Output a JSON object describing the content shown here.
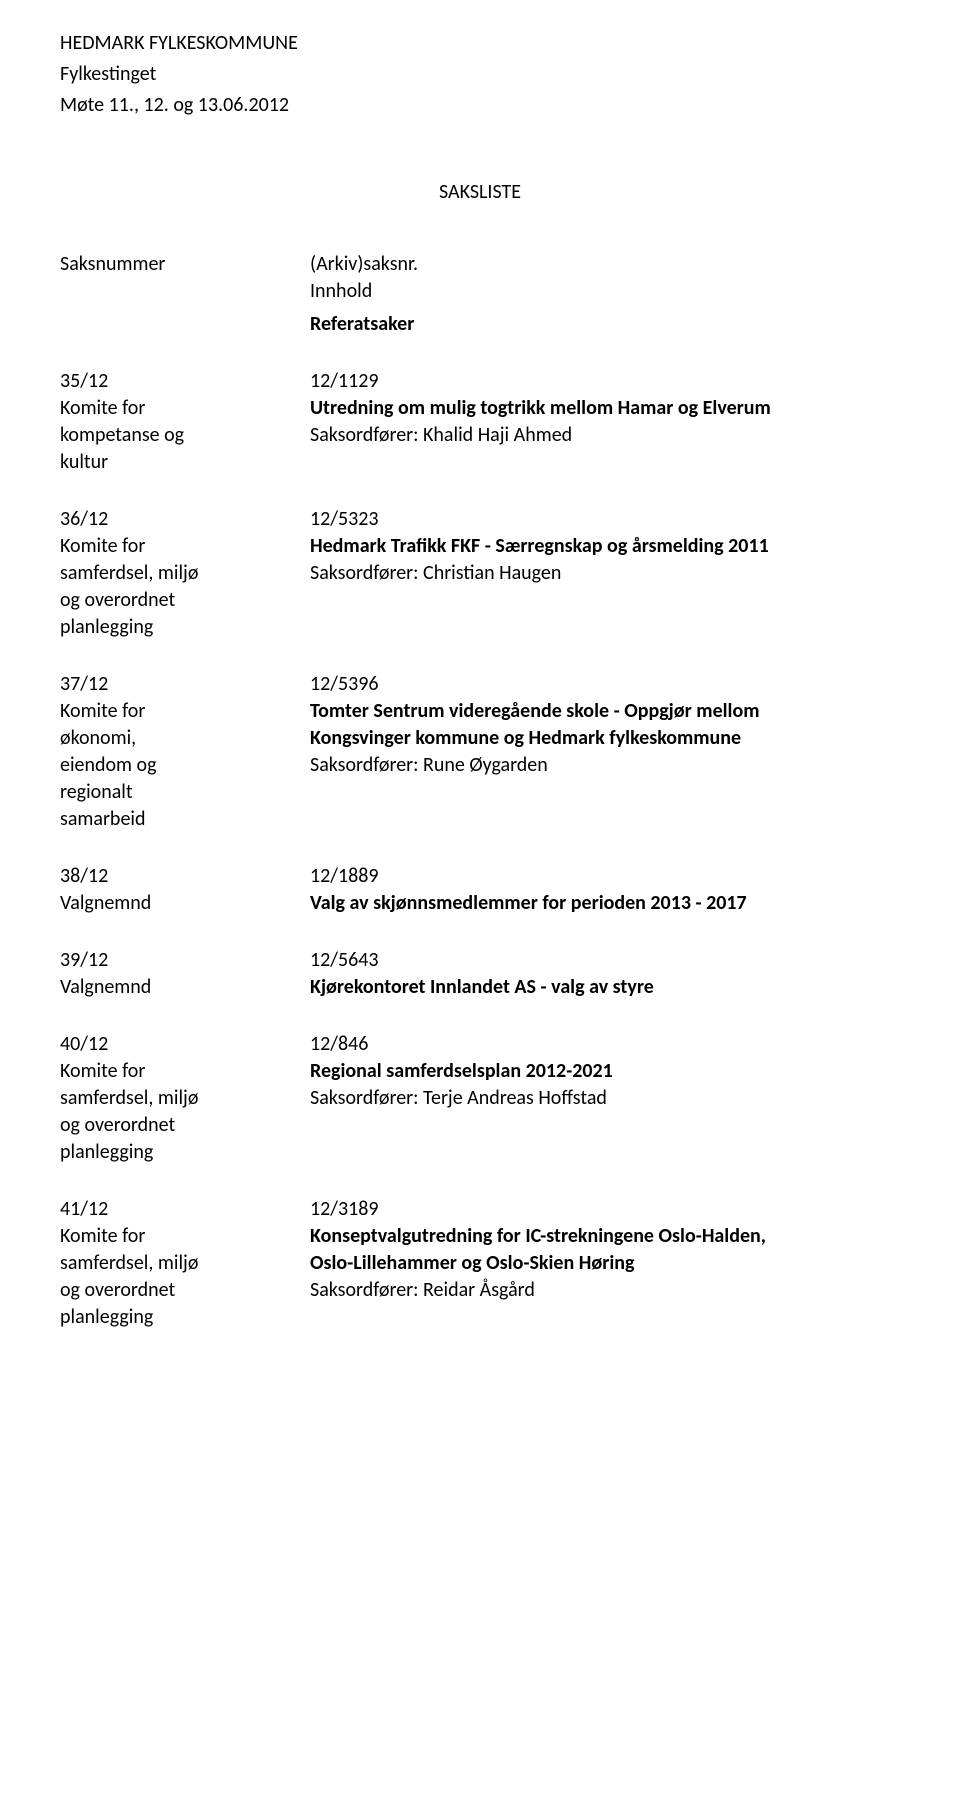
{
  "header": {
    "org": "HEDMARK FYLKESKOMMUNE",
    "body": "Fylkestinget",
    "meeting": "Møte 11., 12. og 13.06.2012"
  },
  "page": {
    "title": "SAKSLISTE",
    "col_left_label": "Saksnummer",
    "col_right_label": "(Arkiv)saksnr.",
    "col_right_sub": "Innhold",
    "referatsaker_label": "Referatsaker"
  },
  "items": [
    {
      "num": "35/12",
      "committee_lines": [
        "Komite for",
        "kompetanse og",
        "kultur"
      ],
      "arkiv": "12/1129",
      "title_lines": [
        "Utredning om mulig togtrikk mellom Hamar og Elverum"
      ],
      "saksordforer": "Saksordfører: Khalid Haji Ahmed"
    },
    {
      "num": "36/12",
      "committee_lines": [
        "Komite for",
        "samferdsel, miljø",
        "og overordnet",
        "planlegging"
      ],
      "arkiv": "12/5323",
      "title_lines": [
        "Hedmark Trafikk FKF - Særregnskap og årsmelding 2011"
      ],
      "saksordforer": "Saksordfører: Christian Haugen"
    },
    {
      "num": "37/12",
      "committee_lines": [
        "Komite for",
        "økonomi,",
        "eiendom og",
        "regionalt",
        "samarbeid"
      ],
      "arkiv": "12/5396",
      "title_lines": [
        "Tomter Sentrum videregående skole - Oppgjør mellom",
        "Kongsvinger kommune og Hedmark fylkeskommune"
      ],
      "saksordforer": "Saksordfører: Rune Øygarden"
    },
    {
      "num": "38/12",
      "committee_lines": [
        "Valgnemnd"
      ],
      "arkiv": "12/1889",
      "title_lines": [
        "Valg av skjønnsmedlemmer for perioden 2013 - 2017"
      ],
      "saksordforer": ""
    },
    {
      "num": "39/12",
      "committee_lines": [
        "Valgnemnd"
      ],
      "arkiv": "12/5643",
      "title_lines": [
        "Kjørekontoret Innlandet AS - valg av styre"
      ],
      "saksordforer": ""
    },
    {
      "num": "40/12",
      "committee_lines": [
        "Komite for",
        "samferdsel, miljø",
        "og overordnet",
        "planlegging"
      ],
      "arkiv": "12/846",
      "title_lines": [
        "Regional samferdselsplan 2012-2021"
      ],
      "saksordforer": "Saksordfører: Terje Andreas Hoffstad"
    },
    {
      "num": "41/12",
      "committee_lines": [
        "Komite for",
        "samferdsel, miljø",
        "og overordnet",
        "planlegging"
      ],
      "arkiv": "12/3189",
      "title_lines": [
        "Konseptvalgutredning for IC-strekningene Oslo-Halden,",
        "Oslo-Lillehammer og Oslo-Skien Høring"
      ],
      "saksordforer": "Saksordfører: Reidar Åsgård"
    }
  ]
}
